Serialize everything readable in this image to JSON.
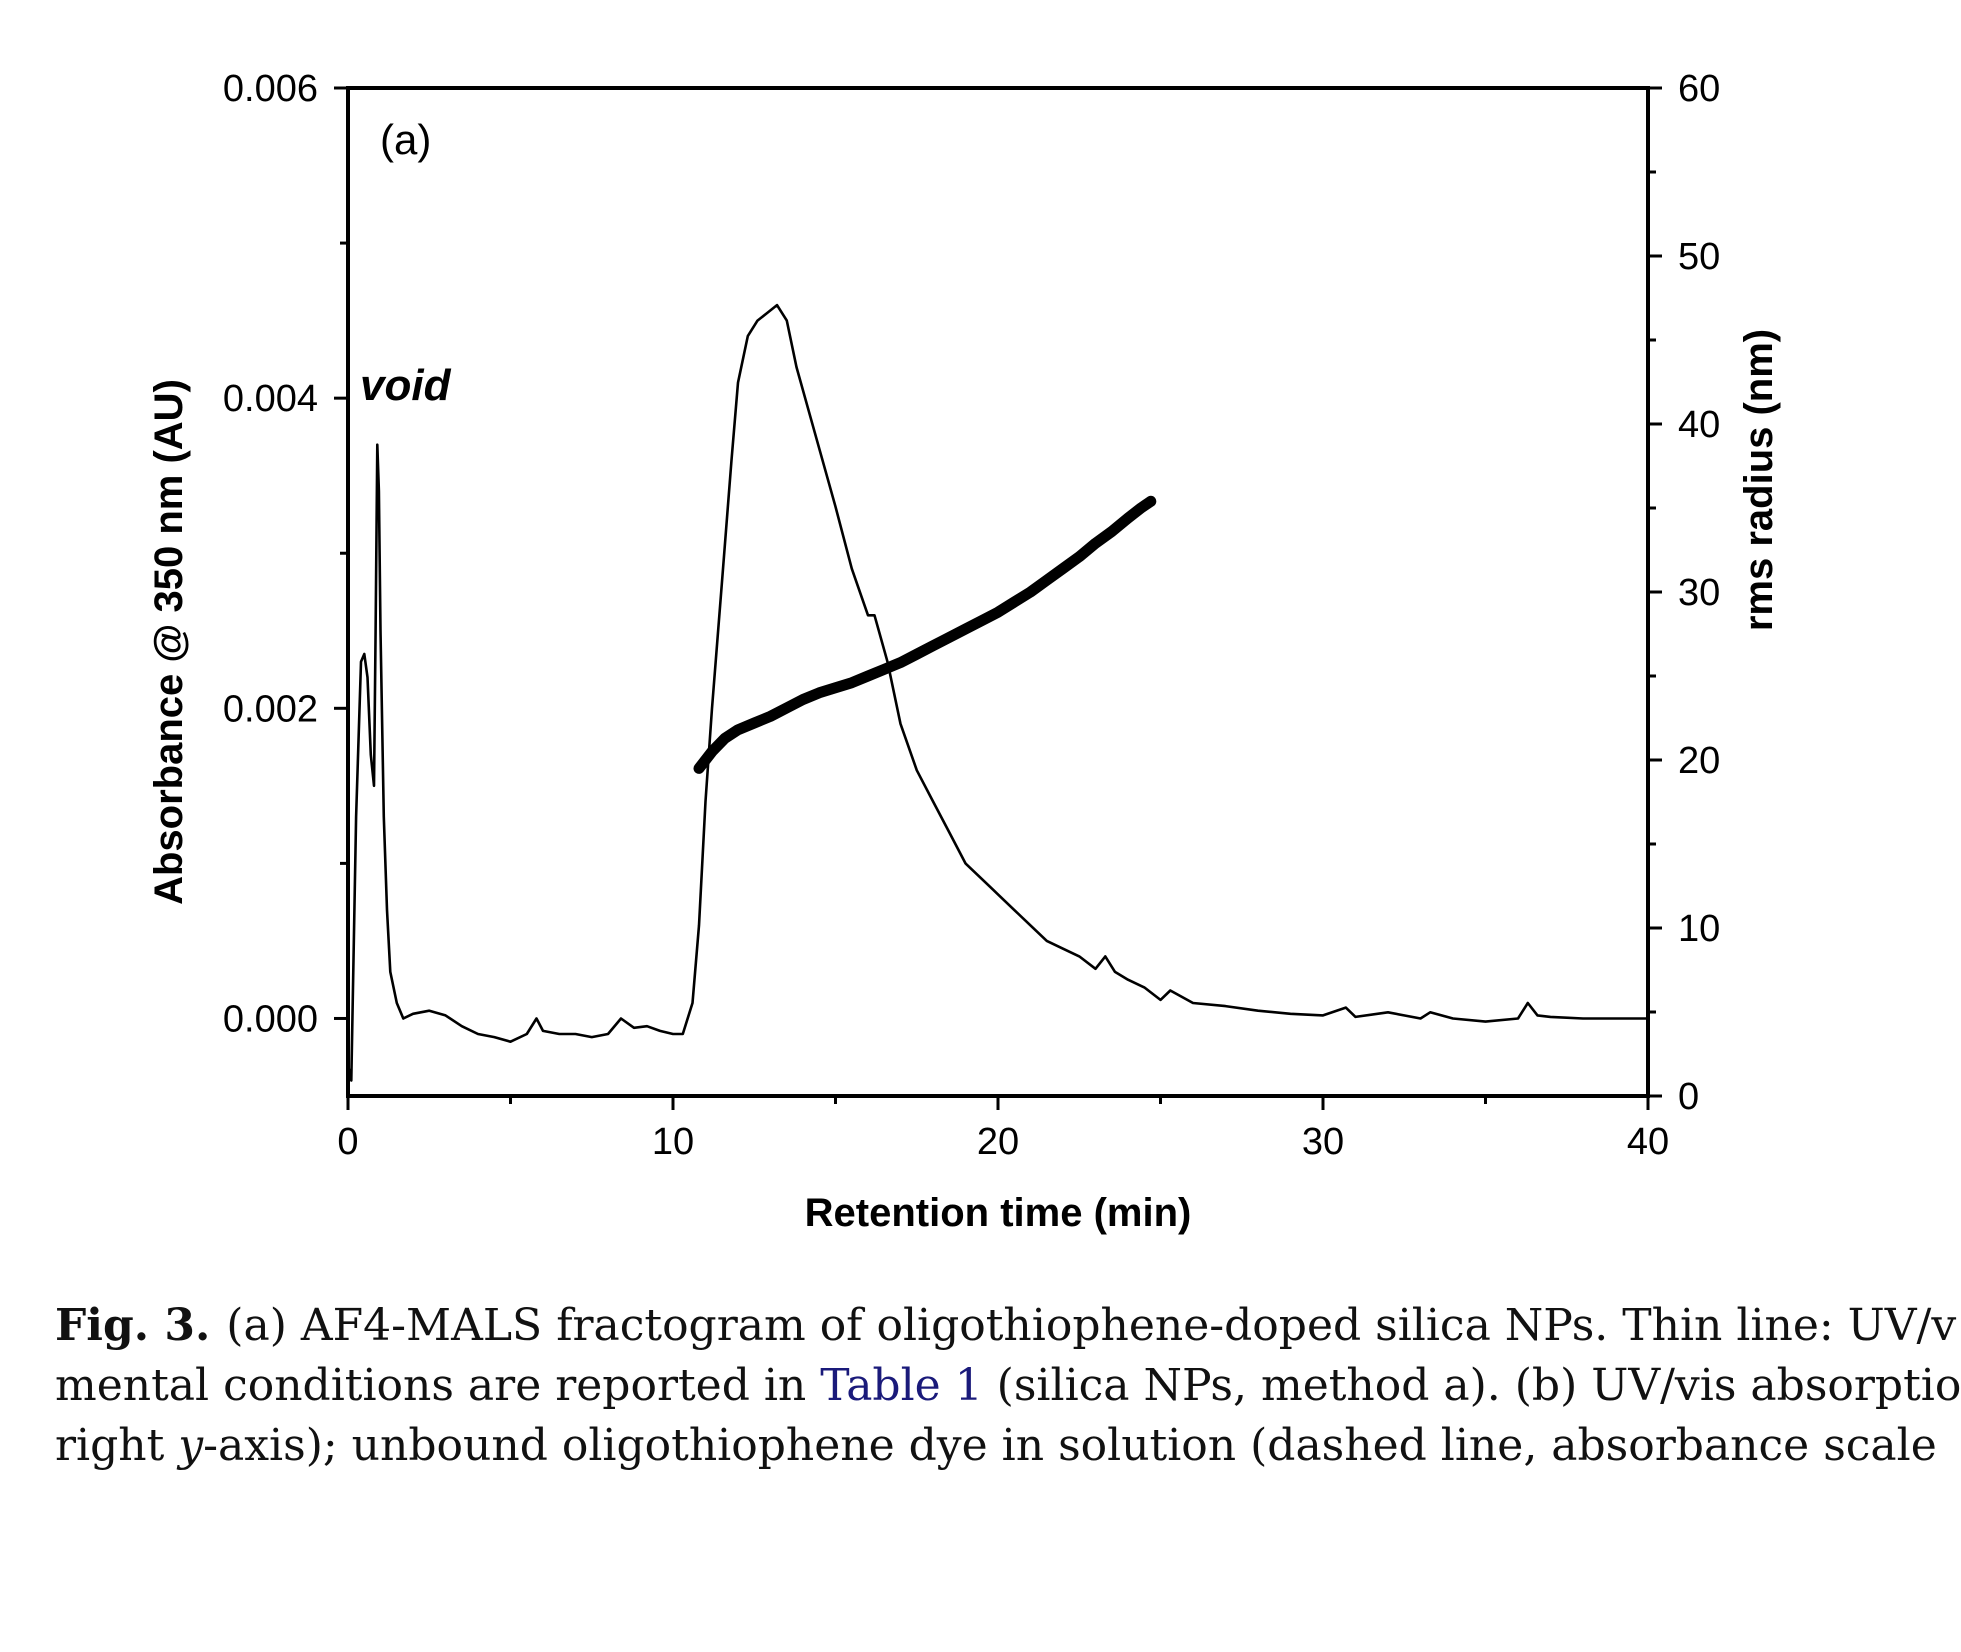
{
  "chart_data": {
    "type": "line",
    "panel_label": "(a)",
    "annotation": "void",
    "xlabel": "Retention time (min)",
    "ylabel": "Absorbance @ 350 nm (AU)",
    "y2label": "rms radius (nm)",
    "xlim": [
      0,
      40
    ],
    "ylim": [
      -0.0005,
      0.006
    ],
    "y2lim": [
      0,
      60
    ],
    "xticks": [
      0,
      10,
      20,
      30,
      40
    ],
    "xtick_labels": [
      "0",
      "10",
      "20",
      "30",
      "40"
    ],
    "yticks": [
      0.0,
      0.002,
      0.004,
      0.006
    ],
    "ytick_labels": [
      "0.000",
      "0.002",
      "0.004",
      "0.006"
    ],
    "y2ticks": [
      0,
      10,
      20,
      30,
      40,
      50,
      60
    ],
    "y2tick_labels": [
      "0",
      "10",
      "20",
      "30",
      "40",
      "50",
      "60"
    ],
    "grid": false,
    "series": [
      {
        "style": "thin-line",
        "axis": "left",
        "color": "#000000",
        "x": [
          0,
          0.1,
          0.25,
          0.4,
          0.5,
          0.6,
          0.7,
          0.8,
          0.85,
          0.9,
          0.95,
          1.0,
          1.1,
          1.2,
          1.3,
          1.5,
          1.7,
          2.0,
          2.5,
          3.0,
          3.5,
          4.0,
          4.5,
          5.0,
          5.5,
          5.8,
          6.0,
          6.5,
          7.0,
          7.5,
          8.0,
          8.4,
          8.8,
          9.2,
          9.6,
          10.0,
          10.3,
          10.6,
          10.8,
          11.0,
          11.2,
          11.5,
          11.8,
          12.0,
          12.3,
          12.6,
          12.9,
          13.2,
          13.5,
          13.8,
          14.2,
          14.6,
          15.0,
          15.5,
          16.0,
          16.2,
          16.6,
          17.0,
          17.5,
          18.0,
          18.5,
          19.0,
          19.5,
          20.0,
          20.5,
          21.0,
          21.5,
          22.0,
          22.5,
          23.0,
          23.3,
          23.6,
          24.0,
          24.5,
          25.0,
          25.3,
          26.0,
          27.0,
          28.0,
          29.0,
          30.0,
          30.7,
          31.0,
          32.0,
          33.0,
          33.3,
          34.0,
          35.0,
          36.0,
          36.3,
          36.6,
          37.0,
          38.0,
          39.0,
          40.0
        ],
        "y": [
          -0.0003,
          -0.0004,
          0.0013,
          0.0023,
          0.00235,
          0.0022,
          0.0017,
          0.0015,
          0.0025,
          0.0037,
          0.0034,
          0.0025,
          0.0013,
          0.0007,
          0.0003,
          0.0001,
          0.0,
          3e-05,
          5e-05,
          2e-05,
          -5e-05,
          -0.0001,
          -0.00012,
          -0.00015,
          -0.0001,
          0.0,
          -8e-05,
          -0.0001,
          -0.0001,
          -0.00012,
          -0.0001,
          0.0,
          -6e-05,
          -5e-05,
          -8e-05,
          -0.0001,
          -0.0001,
          0.0001,
          0.0006,
          0.0014,
          0.002,
          0.0028,
          0.0036,
          0.0041,
          0.0044,
          0.0045,
          0.00455,
          0.0046,
          0.0045,
          0.0042,
          0.0039,
          0.0036,
          0.0033,
          0.0029,
          0.0026,
          0.0026,
          0.0023,
          0.0019,
          0.0016,
          0.0014,
          0.0012,
          0.001,
          0.0009,
          0.0008,
          0.0007,
          0.0006,
          0.0005,
          0.00045,
          0.0004,
          0.00032,
          0.0004,
          0.0003,
          0.00025,
          0.0002,
          0.00012,
          0.00018,
          0.0001,
          8e-05,
          5e-05,
          3e-05,
          2e-05,
          7e-05,
          1e-05,
          4e-05,
          0.0,
          4e-05,
          0.0,
          -2e-05,
          0.0,
          0.0001,
          2e-05,
          1e-05,
          0.0,
          0.0,
          0.0
        ]
      },
      {
        "style": "thick-line",
        "axis": "right",
        "color": "#000000",
        "x": [
          10.8,
          11.2,
          11.6,
          12.0,
          12.5,
          13.0,
          13.5,
          14.0,
          14.5,
          15.0,
          15.5,
          16.0,
          16.5,
          17.0,
          17.5,
          18.0,
          18.5,
          19.0,
          19.5,
          20.0,
          20.5,
          21.0,
          21.5,
          22.0,
          22.5,
          23.0,
          23.5,
          24.0,
          24.4,
          24.7
        ],
        "y": [
          19.5,
          20.5,
          21.3,
          21.8,
          22.2,
          22.6,
          23.1,
          23.6,
          24.0,
          24.3,
          24.6,
          25.0,
          25.4,
          25.8,
          26.3,
          26.8,
          27.3,
          27.8,
          28.3,
          28.8,
          29.4,
          30.0,
          30.7,
          31.4,
          32.1,
          32.9,
          33.6,
          34.4,
          35.0,
          35.4
        ]
      }
    ]
  },
  "caption": {
    "label": "Fig. 3.",
    "line1_text": "(a) AF4-MALS fractogram of oligothiophene-doped silica NPs. Thin line: UV/v",
    "line2_prefix": "mental conditions are reported in ",
    "line2_link": "Table 1",
    "line2_suffix": " (silica NPs, method a). (b) UV/vis absorptio",
    "line3_prefix": "right ",
    "line3_italic": "y",
    "line3_suffix": "-axis); unbound oligothiophene dye in solution (dashed line, absorbance scale"
  }
}
